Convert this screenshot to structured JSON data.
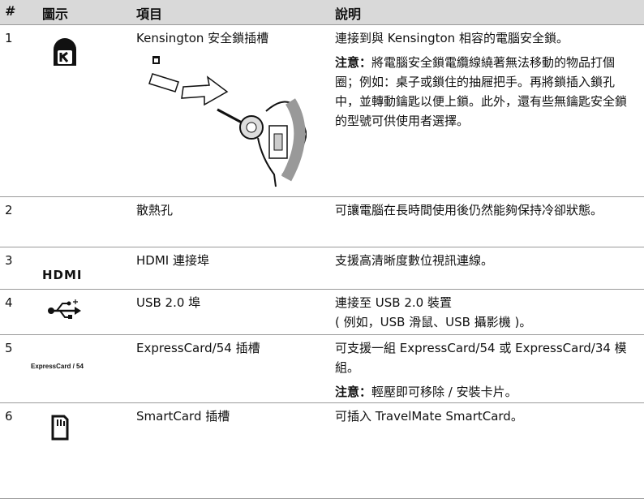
{
  "header": {
    "number": "#",
    "icon": "圖示",
    "item": "項目",
    "description": "說明"
  },
  "rows": [
    {
      "number": "1",
      "item": "Kensington 安全鎖插槽",
      "description": [
        {
          "text": "連接到與 Kensington 相容的電腦安全鎖。"
        },
        {
          "label": "注意：",
          "text": "將電腦安全鎖電纜線繞著無法移動的物品打個圈；例如：桌子或鎖住的抽屜把手。再將鎖插入鎖孔中，並轉動鑰匙以便上鎖。此外，還有些無鑰匙安全鎖的型號可供使用者選擇。"
        }
      ]
    },
    {
      "number": "2",
      "item": "散熱孔",
      "description": [
        {
          "text": "可讓電腦在長時間使用後仍然能夠保持冷卻狀態。"
        }
      ]
    },
    {
      "number": "3",
      "icon_label": "HDMI",
      "item": "HDMI 連接埠",
      "description": [
        {
          "text": "支援高清晰度數位視訊連線。"
        }
      ]
    },
    {
      "number": "4",
      "item": "USB 2.0 埠",
      "description": [
        {
          "text": "連接至 USB 2.0 裝置"
        },
        {
          "text": "( 例如，USB 滑鼠、USB 攝影機 )。"
        }
      ]
    },
    {
      "number": "5",
      "icon_label": "ExpressCard / 54",
      "item": "ExpressCard/54 插槽",
      "description": [
        {
          "text": "可支援一組 ExpressCard/54 或 ExpressCard/34 模組。"
        },
        {
          "label": "注意：",
          "text": "輕壓即可移除 / 安裝卡片。"
        }
      ]
    },
    {
      "number": "6",
      "item": "SmartCard 插槽",
      "description": [
        {
          "text": "可插入 TravelMate SmartCard。"
        }
      ]
    }
  ]
}
